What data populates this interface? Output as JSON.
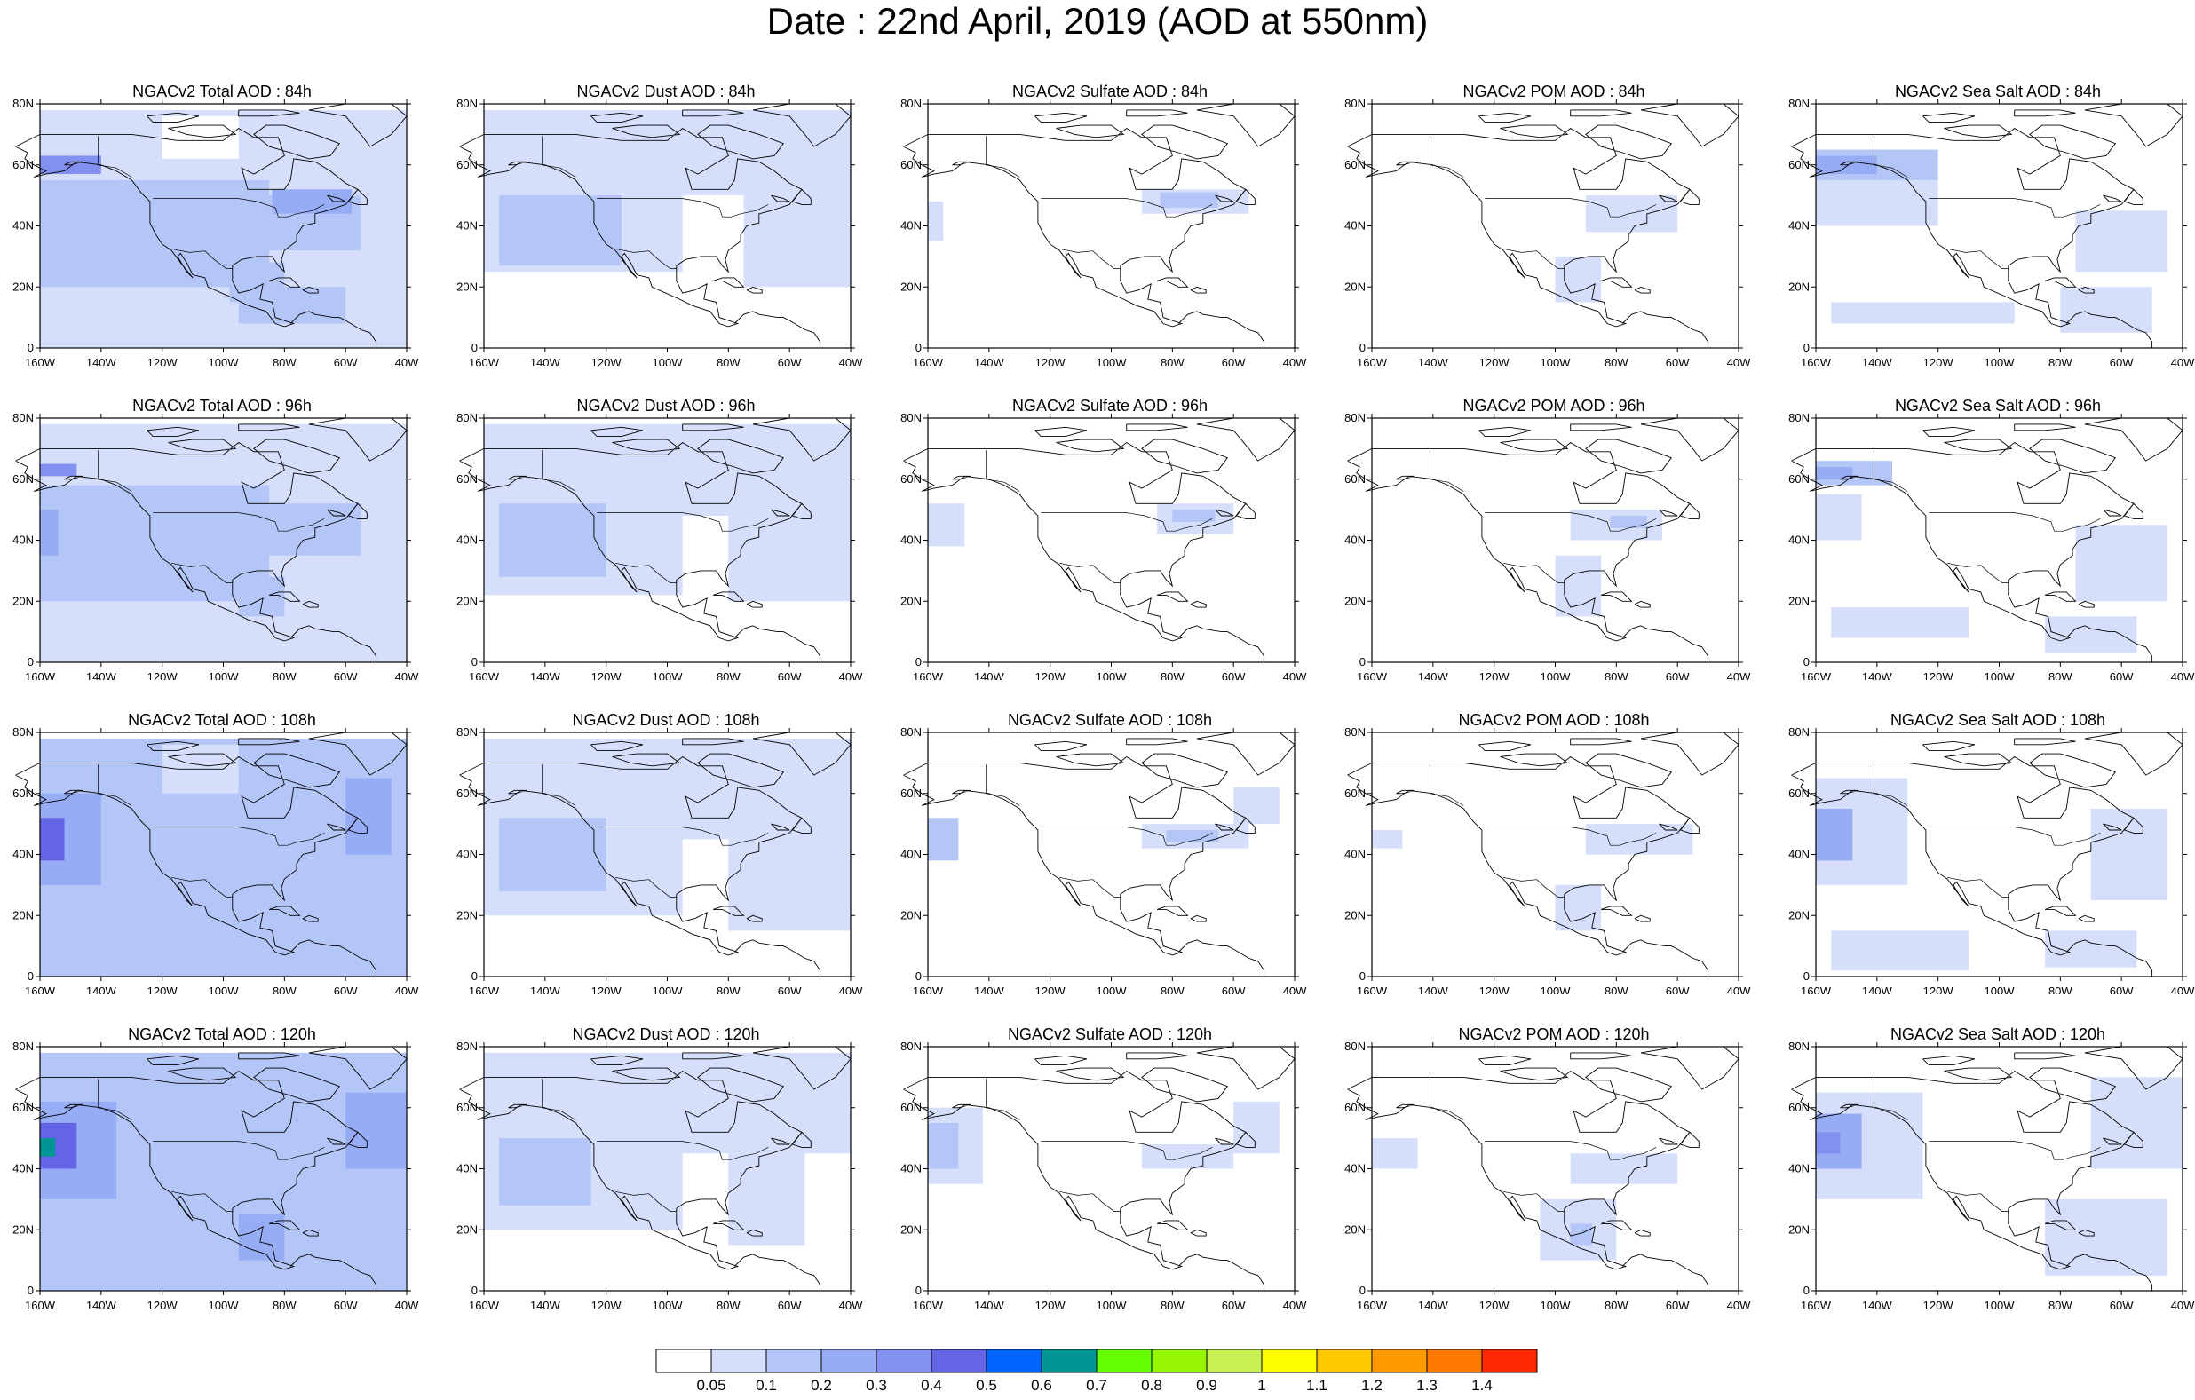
{
  "title": "Date : 22nd April, 2019 (AOD at 550nm)",
  "map": {
    "lon_range": [
      -160,
      -40
    ],
    "lat_range": [
      0,
      80
    ],
    "x_ticks": [
      "160W",
      "140W",
      "120W",
      "100W",
      "80W",
      "60W",
      "40W"
    ],
    "y_ticks": [
      "0",
      "20N",
      "40N",
      "60N",
      "80N"
    ]
  },
  "rows": [
    {
      "lead": "84h",
      "titles": [
        "NGACv2 Total AOD : 84h",
        "NGACv2 Dust AOD : 84h",
        "NGACv2 Sulfate AOD : 84h",
        "NGACv2 POM AOD : 84h",
        "NGACv2 Sea Salt AOD : 84h"
      ]
    },
    {
      "lead": "96h",
      "titles": [
        "NGACv2 Total AOD : 96h",
        "NGACv2 Dust AOD : 96h",
        "NGACv2 Sulfate AOD : 96h",
        "NGACv2 POM AOD : 96h",
        "NGACv2 Sea Salt AOD : 96h"
      ]
    },
    {
      "lead": "108h",
      "titles": [
        "NGACv2 Total AOD : 108h",
        "NGACv2 Dust AOD : 108h",
        "NGACv2 Sulfate AOD : 108h",
        "NGACv2 POM AOD : 108h",
        "NGACv2 Sea Salt AOD : 108h"
      ]
    },
    {
      "lead": "120h",
      "titles": [
        "NGACv2 Total AOD : 120h",
        "NGACv2 Dust AOD : 120h",
        "NGACv2 Sulfate AOD : 120h",
        "NGACv2 POM AOD : 120h",
        "NGACv2 Sea Salt  AOD : 120h"
      ]
    }
  ],
  "colorbar": {
    "labels": [
      "0.05",
      "0.1",
      "0.2",
      "0.3",
      "0.4",
      "0.5",
      "0.6",
      "0.7",
      "0.8",
      "0.9",
      "1",
      "1.1",
      "1.2",
      "1.3",
      "1.4"
    ],
    "colors": [
      "#ffffff",
      "#d5defa",
      "#b4c6f7",
      "#96acf5",
      "#8291f0",
      "#6464e6",
      "#0064ff",
      "#009696",
      "#64ff00",
      "#96f500",
      "#c8f050",
      "#ffff00",
      "#ffc800",
      "#ff9b00",
      "#ff7800",
      "#ff2800"
    ]
  },
  "panels": [
    {
      "id": "total-84h",
      "species": "total",
      "lead": "84h",
      "fill": [
        {
          "lon": [
            -160,
            -40
          ],
          "lat": [
            0,
            78
          ],
          "level": 1
        },
        {
          "lon": [
            -160,
            -85
          ],
          "lat": [
            20,
            55
          ],
          "level": 2
        },
        {
          "lon": [
            -90,
            -55
          ],
          "lat": [
            32,
            50
          ],
          "level": 2
        },
        {
          "lon": [
            -160,
            -140
          ],
          "lat": [
            57,
            63
          ],
          "level": 4
        },
        {
          "lon": [
            -98,
            -80
          ],
          "lat": [
            15,
            28
          ],
          "level": 2
        },
        {
          "lon": [
            -95,
            -60
          ],
          "lat": [
            8,
            20
          ],
          "level": 2
        },
        {
          "lon": [
            -84,
            -58
          ],
          "lat": [
            44,
            52
          ],
          "level": 3
        },
        {
          "lon": [
            -120,
            -95
          ],
          "lat": [
            62,
            76
          ],
          "level": 0
        }
      ]
    },
    {
      "id": "dust-84h",
      "species": "dust",
      "lead": "84h",
      "fill": [
        {
          "lon": [
            -160,
            -40
          ],
          "lat": [
            50,
            78
          ],
          "level": 1
        },
        {
          "lon": [
            -160,
            -95
          ],
          "lat": [
            25,
            60
          ],
          "level": 1
        },
        {
          "lon": [
            -155,
            -115
          ],
          "lat": [
            27,
            50
          ],
          "level": 2
        },
        {
          "lon": [
            -75,
            -40
          ],
          "lat": [
            20,
            55
          ],
          "level": 1
        }
      ]
    },
    {
      "id": "sulfate-84h",
      "species": "sulfate",
      "lead": "84h",
      "fill": [
        {
          "lon": [
            -160,
            -155
          ],
          "lat": [
            35,
            48
          ],
          "level": 1
        },
        {
          "lon": [
            -90,
            -55
          ],
          "lat": [
            44,
            52
          ],
          "level": 1
        },
        {
          "lon": [
            -84,
            -65
          ],
          "lat": [
            46,
            51
          ],
          "level": 2
        }
      ]
    },
    {
      "id": "pom-84h",
      "species": "pom",
      "lead": "84h",
      "fill": [
        {
          "lon": [
            -90,
            -60
          ],
          "lat": [
            38,
            50
          ],
          "level": 1
        },
        {
          "lon": [
            -100,
            -85
          ],
          "lat": [
            15,
            30
          ],
          "level": 1
        }
      ]
    },
    {
      "id": "seasalt-84h",
      "species": "seasalt",
      "lead": "84h",
      "fill": [
        {
          "lon": [
            -160,
            -120
          ],
          "lat": [
            55,
            65
          ],
          "level": 2
        },
        {
          "lon": [
            -160,
            -140
          ],
          "lat": [
            57,
            63
          ],
          "level": 3
        },
        {
          "lon": [
            -160,
            -120
          ],
          "lat": [
            40,
            55
          ],
          "level": 1
        },
        {
          "lon": [
            -155,
            -95
          ],
          "lat": [
            8,
            15
          ],
          "level": 1
        },
        {
          "lon": [
            -75,
            -45
          ],
          "lat": [
            25,
            45
          ],
          "level": 1
        },
        {
          "lon": [
            -80,
            -50
          ],
          "lat": [
            5,
            20
          ],
          "level": 1
        }
      ]
    },
    {
      "id": "total-96h",
      "species": "total",
      "lead": "96h",
      "fill": [
        {
          "lon": [
            -160,
            -40
          ],
          "lat": [
            0,
            78
          ],
          "level": 1
        },
        {
          "lon": [
            -160,
            -85
          ],
          "lat": [
            20,
            58
          ],
          "level": 2
        },
        {
          "lon": [
            -85,
            -55
          ],
          "lat": [
            35,
            52
          ],
          "level": 2
        },
        {
          "lon": [
            -160,
            -148
          ],
          "lat": [
            61,
            65
          ],
          "level": 4
        },
        {
          "lon": [
            -95,
            -80
          ],
          "lat": [
            15,
            28
          ],
          "level": 2
        },
        {
          "lon": [
            -160,
            -154
          ],
          "lat": [
            35,
            50
          ],
          "level": 3
        }
      ]
    },
    {
      "id": "dust-96h",
      "species": "dust",
      "lead": "96h",
      "fill": [
        {
          "lon": [
            -160,
            -40
          ],
          "lat": [
            48,
            78
          ],
          "level": 1
        },
        {
          "lon": [
            -160,
            -95
          ],
          "lat": [
            22,
            58
          ],
          "level": 1
        },
        {
          "lon": [
            -155,
            -120
          ],
          "lat": [
            28,
            52
          ],
          "level": 2
        },
        {
          "lon": [
            -80,
            -40
          ],
          "lat": [
            20,
            50
          ],
          "level": 1
        }
      ]
    },
    {
      "id": "sulfate-96h",
      "species": "sulfate",
      "lead": "96h",
      "fill": [
        {
          "lon": [
            -160,
            -148
          ],
          "lat": [
            38,
            52
          ],
          "level": 1
        },
        {
          "lon": [
            -85,
            -60
          ],
          "lat": [
            42,
            52
          ],
          "level": 1
        },
        {
          "lon": [
            -80,
            -66
          ],
          "lat": [
            46,
            50
          ],
          "level": 2
        }
      ]
    },
    {
      "id": "pom-96h",
      "species": "pom",
      "lead": "96h",
      "fill": [
        {
          "lon": [
            -95,
            -65
          ],
          "lat": [
            40,
            50
          ],
          "level": 1
        },
        {
          "lon": [
            -100,
            -85
          ],
          "lat": [
            15,
            35
          ],
          "level": 1
        },
        {
          "lon": [
            -82,
            -70
          ],
          "lat": [
            44,
            48
          ],
          "level": 2
        }
      ]
    },
    {
      "id": "seasalt-96h",
      "species": "seasalt",
      "lead": "96h",
      "fill": [
        {
          "lon": [
            -160,
            -135
          ],
          "lat": [
            58,
            66
          ],
          "level": 2
        },
        {
          "lon": [
            -160,
            -148
          ],
          "lat": [
            60,
            64
          ],
          "level": 3
        },
        {
          "lon": [
            -160,
            -145
          ],
          "lat": [
            40,
            55
          ],
          "level": 1
        },
        {
          "lon": [
            -155,
            -110
          ],
          "lat": [
            8,
            18
          ],
          "level": 1
        },
        {
          "lon": [
            -75,
            -45
          ],
          "lat": [
            20,
            45
          ],
          "level": 1
        },
        {
          "lon": [
            -85,
            -55
          ],
          "lat": [
            3,
            15
          ],
          "level": 1
        }
      ]
    },
    {
      "id": "total-108h",
      "species": "total",
      "lead": "108h",
      "fill": [
        {
          "lon": [
            -160,
            -40
          ],
          "lat": [
            0,
            78
          ],
          "level": 2
        },
        {
          "lon": [
            -160,
            -140
          ],
          "lat": [
            30,
            60
          ],
          "level": 3
        },
        {
          "lon": [
            -160,
            -152
          ],
          "lat": [
            38,
            52
          ],
          "level": 5
        },
        {
          "lon": [
            -60,
            -45
          ],
          "lat": [
            40,
            65
          ],
          "level": 3
        },
        {
          "lon": [
            -120,
            -95
          ],
          "lat": [
            60,
            76
          ],
          "level": 1
        }
      ]
    },
    {
      "id": "dust-108h",
      "species": "dust",
      "lead": "108h",
      "fill": [
        {
          "lon": [
            -160,
            -40
          ],
          "lat": [
            45,
            78
          ],
          "level": 1
        },
        {
          "lon": [
            -160,
            -95
          ],
          "lat": [
            20,
            60
          ],
          "level": 1
        },
        {
          "lon": [
            -155,
            -120
          ],
          "lat": [
            28,
            52
          ],
          "level": 2
        },
        {
          "lon": [
            -80,
            -40
          ],
          "lat": [
            15,
            45
          ],
          "level": 1
        }
      ]
    },
    {
      "id": "sulfate-108h",
      "species": "sulfate",
      "lead": "108h",
      "fill": [
        {
          "lon": [
            -160,
            -150
          ],
          "lat": [
            38,
            52
          ],
          "level": 2
        },
        {
          "lon": [
            -90,
            -55
          ],
          "lat": [
            42,
            50
          ],
          "level": 1
        },
        {
          "lon": [
            -60,
            -45
          ],
          "lat": [
            50,
            62
          ],
          "level": 1
        },
        {
          "lon": [
            -82,
            -65
          ],
          "lat": [
            44,
            48
          ],
          "level": 2
        }
      ]
    },
    {
      "id": "pom-108h",
      "species": "pom",
      "lead": "108h",
      "fill": [
        {
          "lon": [
            -160,
            -150
          ],
          "lat": [
            42,
            48
          ],
          "level": 1
        },
        {
          "lon": [
            -90,
            -55
          ],
          "lat": [
            40,
            50
          ],
          "level": 1
        },
        {
          "lon": [
            -100,
            -85
          ],
          "lat": [
            15,
            30
          ],
          "level": 1
        }
      ]
    },
    {
      "id": "seasalt-108h",
      "species": "seasalt",
      "lead": "108h",
      "fill": [
        {
          "lon": [
            -160,
            -130
          ],
          "lat": [
            30,
            65
          ],
          "level": 1
        },
        {
          "lon": [
            -160,
            -148
          ],
          "lat": [
            38,
            55
          ],
          "level": 3
        },
        {
          "lon": [
            -155,
            -110
          ],
          "lat": [
            2,
            15
          ],
          "level": 1
        },
        {
          "lon": [
            -70,
            -45
          ],
          "lat": [
            25,
            55
          ],
          "level": 1
        },
        {
          "lon": [
            -85,
            -55
          ],
          "lat": [
            3,
            15
          ],
          "level": 1
        }
      ]
    },
    {
      "id": "total-120h",
      "species": "total",
      "lead": "120h",
      "fill": [
        {
          "lon": [
            -160,
            -40
          ],
          "lat": [
            0,
            78
          ],
          "level": 2
        },
        {
          "lon": [
            -160,
            -135
          ],
          "lat": [
            30,
            62
          ],
          "level": 3
        },
        {
          "lon": [
            -160,
            -148
          ],
          "lat": [
            40,
            55
          ],
          "level": 5
        },
        {
          "lon": [
            -160,
            -155
          ],
          "lat": [
            44,
            50
          ],
          "level": 7
        },
        {
          "lon": [
            -60,
            -40
          ],
          "lat": [
            40,
            65
          ],
          "level": 3
        },
        {
          "lon": [
            -95,
            -80
          ],
          "lat": [
            10,
            25
          ],
          "level": 3
        }
      ]
    },
    {
      "id": "dust-120h",
      "species": "dust",
      "lead": "120h",
      "fill": [
        {
          "lon": [
            -160,
            -40
          ],
          "lat": [
            45,
            78
          ],
          "level": 1
        },
        {
          "lon": [
            -160,
            -95
          ],
          "lat": [
            20,
            60
          ],
          "level": 1
        },
        {
          "lon": [
            -155,
            -125
          ],
          "lat": [
            28,
            50
          ],
          "level": 2
        },
        {
          "lon": [
            -80,
            -55
          ],
          "lat": [
            15,
            45
          ],
          "level": 1
        }
      ]
    },
    {
      "id": "sulfate-120h",
      "species": "sulfate",
      "lead": "120h",
      "fill": [
        {
          "lon": [
            -160,
            -142
          ],
          "lat": [
            35,
            60
          ],
          "level": 1
        },
        {
          "lon": [
            -160,
            -150
          ],
          "lat": [
            40,
            55
          ],
          "level": 2
        },
        {
          "lon": [
            -90,
            -60
          ],
          "lat": [
            40,
            48
          ],
          "level": 1
        },
        {
          "lon": [
            -60,
            -45
          ],
          "lat": [
            45,
            62
          ],
          "level": 1
        }
      ]
    },
    {
      "id": "pom-120h",
      "species": "pom",
      "lead": "120h",
      "fill": [
        {
          "lon": [
            -160,
            -145
          ],
          "lat": [
            40,
            50
          ],
          "level": 1
        },
        {
          "lon": [
            -95,
            -60
          ],
          "lat": [
            35,
            45
          ],
          "level": 1
        },
        {
          "lon": [
            -105,
            -80
          ],
          "lat": [
            10,
            30
          ],
          "level": 1
        },
        {
          "lon": [
            -95,
            -88
          ],
          "lat": [
            15,
            22
          ],
          "level": 2
        }
      ]
    },
    {
      "id": "seasalt-120h",
      "species": "seasalt",
      "lead": "120h",
      "fill": [
        {
          "lon": [
            -160,
            -125
          ],
          "lat": [
            30,
            65
          ],
          "level": 1
        },
        {
          "lon": [
            -160,
            -145
          ],
          "lat": [
            40,
            58
          ],
          "level": 3
        },
        {
          "lon": [
            -160,
            -152
          ],
          "lat": [
            45,
            52
          ],
          "level": 4
        },
        {
          "lon": [
            -70,
            -40
          ],
          "lat": [
            40,
            70
          ],
          "level": 1
        },
        {
          "lon": [
            -85,
            -45
          ],
          "lat": [
            5,
            30
          ],
          "level": 1
        }
      ]
    }
  ]
}
